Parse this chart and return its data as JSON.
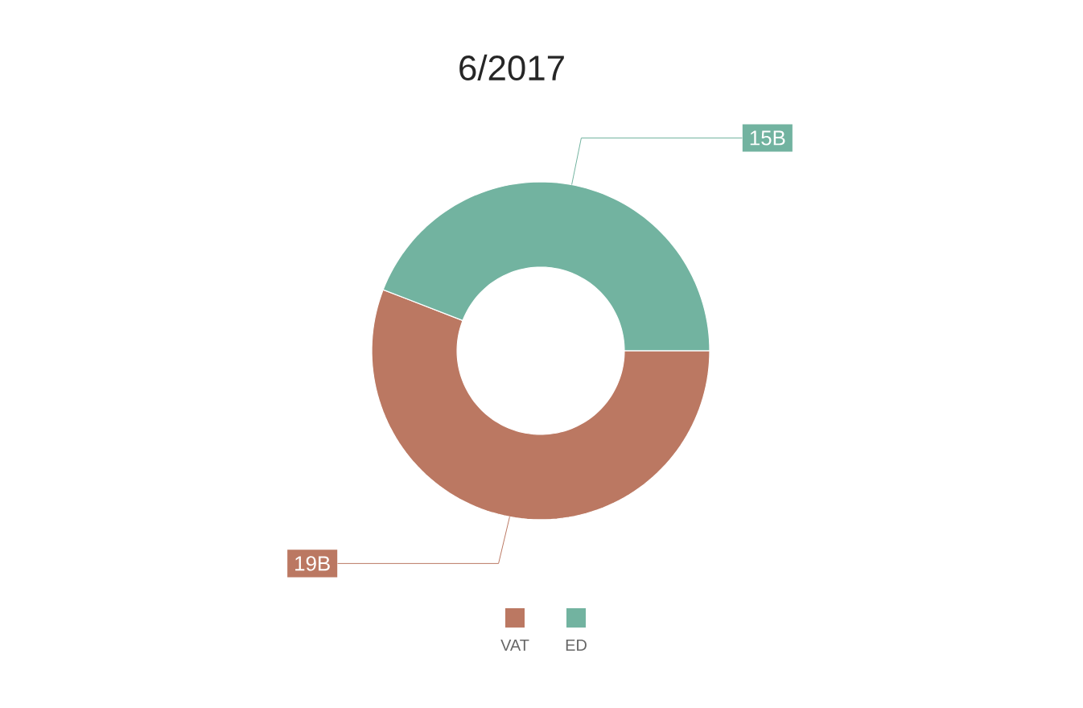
{
  "chart_data": {
    "type": "donut",
    "title": "6/2017",
    "categories": [
      "VAT",
      "ED"
    ],
    "values": [
      19,
      15
    ],
    "colors": [
      "#bb7862",
      "#72b3a0"
    ],
    "value_labels": [
      "19B",
      "15B"
    ],
    "legend": "bottom"
  }
}
